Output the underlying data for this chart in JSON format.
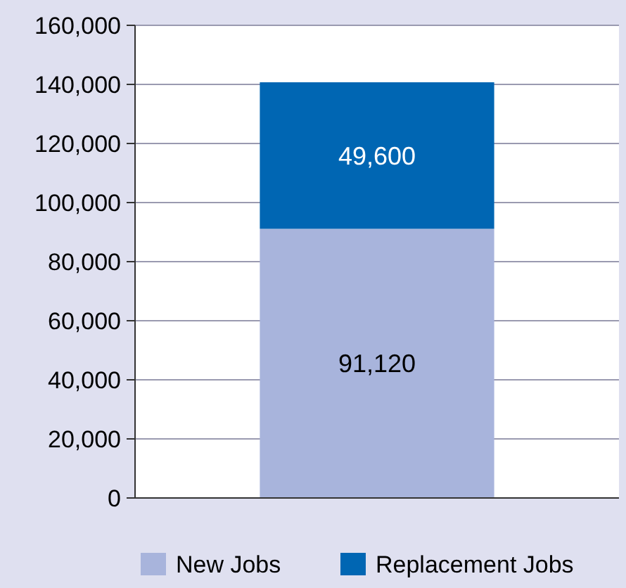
{
  "chart_data": {
    "type": "bar",
    "stacked": true,
    "categories": [
      null
    ],
    "series": [
      {
        "name": "New Jobs",
        "color": "#a8b4dc",
        "values": [
          91120
        ],
        "value_labels": [
          "91,120"
        ]
      },
      {
        "name": "Replacement Jobs",
        "color": "#0066b3",
        "values": [
          49600
        ],
        "value_labels": [
          "49,600"
        ]
      }
    ],
    "ylim": [
      0,
      160000
    ],
    "yticks": [
      {
        "value": 0,
        "label": "0"
      },
      {
        "value": 20000,
        "label": "20,000"
      },
      {
        "value": 40000,
        "label": "40,000"
      },
      {
        "value": 60000,
        "label": "60,000"
      },
      {
        "value": 80000,
        "label": "80,000"
      },
      {
        "value": 100000,
        "label": "100,000"
      },
      {
        "value": 120000,
        "label": "120,000"
      },
      {
        "value": 140000,
        "label": "140,000"
      },
      {
        "value": 160000,
        "label": "160,000"
      }
    ],
    "grid": "y",
    "legend": "bottom"
  }
}
